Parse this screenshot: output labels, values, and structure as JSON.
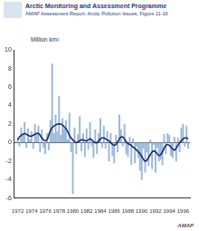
{
  "header": {
    "title": "Arctic Monitoring and Assessment Programme",
    "subtitle": "AMAP Assessment Report: Arctic Pollution Issues, Figure 11-16"
  },
  "chart_data": {
    "type": "bar",
    "y_label": "Million km²",
    "annotations": [
      "AMAP"
    ],
    "x": [
      1972,
      1972.25,
      1972.5,
      1972.75,
      1973,
      1973.25,
      1973.5,
      1973.75,
      1974,
      1974.25,
      1974.5,
      1974.75,
      1975,
      1975.25,
      1975.5,
      1975.75,
      1976,
      1976.25,
      1976.5,
      1976.75,
      1977,
      1977.25,
      1977.5,
      1977.75,
      1978,
      1978.25,
      1978.5,
      1978.75,
      1979,
      1979.25,
      1979.5,
      1979.75,
      1980,
      1980.25,
      1980.5,
      1980.75,
      1981,
      1981.25,
      1981.5,
      1981.75,
      1982,
      1982.25,
      1982.5,
      1982.75,
      1983,
      1983.25,
      1983.5,
      1983.75,
      1984,
      1984.25,
      1984.5,
      1984.75,
      1985,
      1985.25,
      1985.5,
      1985.75,
      1986,
      1986.25,
      1986.5,
      1986.75,
      1987,
      1987.25,
      1987.5,
      1987.75,
      1988,
      1988.25,
      1988.5,
      1988.75,
      1989,
      1989.25,
      1989.5,
      1989.75,
      1990,
      1990.25,
      1990.5,
      1990.75,
      1991,
      1991.25,
      1991.5,
      1991.75,
      1992,
      1992.25,
      1992.5,
      1992.75,
      1993,
      1993.25,
      1993.5,
      1993.75,
      1994,
      1994.25,
      1994.5,
      1994.75,
      1995,
      1995.25,
      1995.5,
      1995.75,
      1996,
      1996.25,
      1996.5,
      1996.75
    ],
    "series": [
      {
        "type": "bar",
        "color": "#9ab8d8",
        "values": [
          0.5,
          -0.4,
          1.6,
          0.8,
          2.2,
          -0.5,
          1.5,
          0.3,
          1.2,
          -0.6,
          2.0,
          0.9,
          1.8,
          -1.0,
          1.4,
          -0.5,
          -1.2,
          1.0,
          -0.8,
          2.4,
          8.5,
          1.0,
          3.0,
          1.2,
          5.0,
          0.8,
          2.6,
          1.5,
          2.4,
          0.3,
          3.2,
          -1.0,
          -5.5,
          1.6,
          -1.2,
          0.9,
          2.8,
          -0.9,
          1.0,
          -1.5,
          1.5,
          -0.7,
          2.2,
          -0.4,
          -1.6,
          1.4,
          -1.2,
          1.0,
          2.6,
          -0.5,
          1.8,
          -0.6,
          1.2,
          -2.0,
          1.0,
          -1.4,
          -2.2,
          0.8,
          -1.0,
          3.0,
          1.4,
          -0.4,
          2.0,
          -1.2,
          -1.5,
          0.6,
          -2.4,
          0.4,
          -2.2,
          -0.4,
          -1.6,
          -3.0,
          -4.0,
          -0.6,
          -3.2,
          -1.0,
          -2.5,
          0.3,
          -2.8,
          -0.2,
          -3.2,
          -0.5,
          -2.0,
          -1.8,
          -2.4,
          0.9,
          -1.2,
          1.0,
          0.8,
          -1.4,
          -1.6,
          0.6,
          -2.0,
          0.5,
          -1.0,
          1.6,
          2.0,
          -0.4,
          1.8,
          -0.6
        ]
      },
      {
        "type": "line",
        "color": "#1a2a6c",
        "values": [
          0.3,
          0.6,
          0.8,
          0.9,
          1.0,
          0.9,
          0.8,
          0.7,
          0.7,
          0.8,
          0.9,
          1.0,
          1.0,
          0.8,
          0.5,
          0.3,
          0.2,
          0.3,
          0.8,
          1.3,
          1.6,
          1.8,
          1.9,
          2.0,
          2.0,
          2.0,
          1.9,
          1.7,
          1.5,
          1.2,
          0.8,
          0.5,
          0.3,
          0.1,
          0.0,
          0.1,
          0.2,
          0.3,
          0.3,
          0.2,
          0.2,
          0.3,
          0.4,
          0.3,
          0.1,
          0.0,
          0.0,
          0.2,
          0.4,
          0.5,
          0.5,
          0.4,
          0.3,
          0.2,
          0.0,
          -0.2,
          -0.3,
          -0.2,
          0.1,
          0.4,
          0.6,
          0.6,
          0.4,
          0.1,
          -0.1,
          -0.2,
          -0.3,
          -0.5,
          -0.6,
          -0.8,
          -1.0,
          -1.2,
          -1.5,
          -1.8,
          -2.0,
          -1.9,
          -1.6,
          -1.3,
          -1.0,
          -0.9,
          -1.0,
          -1.2,
          -1.4,
          -1.3,
          -1.0,
          -0.6,
          -0.3,
          -0.2,
          -0.3,
          -0.5,
          -0.7,
          -0.8,
          -0.6,
          -0.3,
          0.0,
          0.2,
          0.4,
          0.5,
          0.5,
          0.4
        ]
      }
    ],
    "xlim": [
      1971.5,
      1997
    ],
    "xticks": [
      1972,
      1974,
      1976,
      1978,
      1980,
      1982,
      1984,
      1986,
      1988,
      1990,
      1992,
      1994,
      1996
    ],
    "ylim": [
      -6,
      10
    ],
    "yticks": [
      -6,
      -4,
      -2,
      0,
      2,
      4,
      6,
      8,
      10
    ],
    "grid": false
  }
}
